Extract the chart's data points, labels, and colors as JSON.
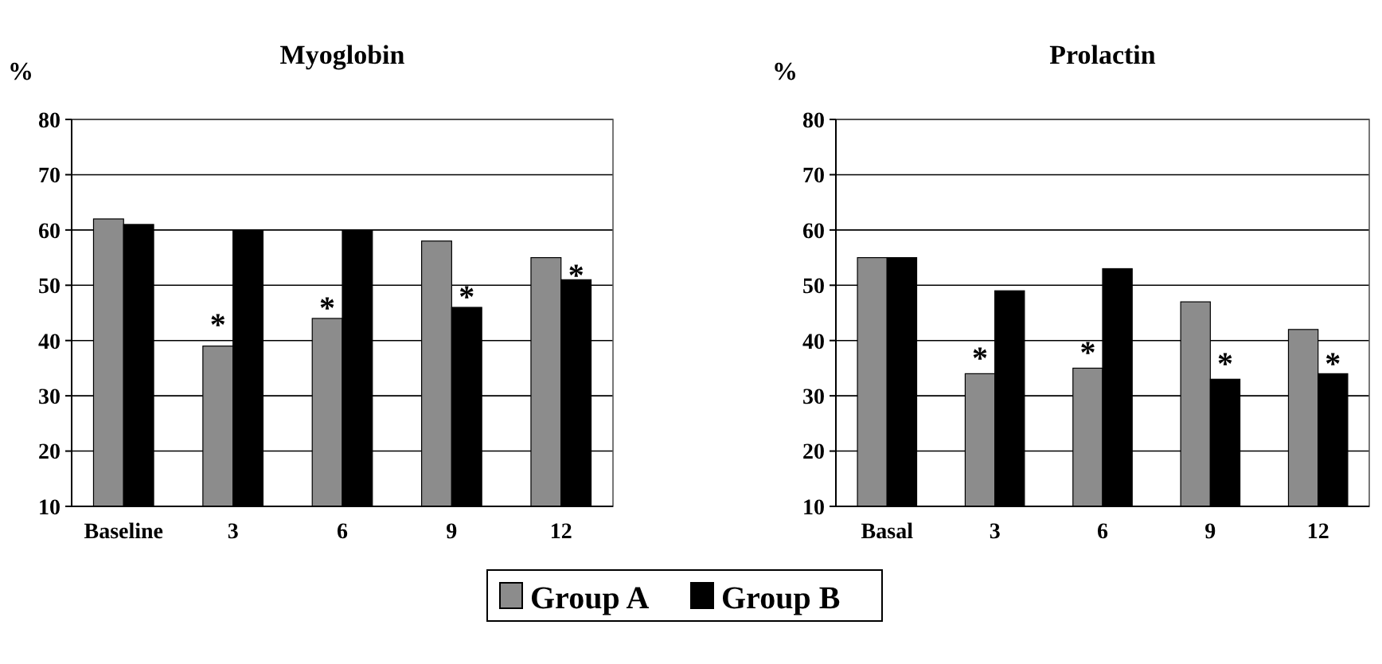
{
  "chart_data": [
    {
      "type": "bar",
      "title": "Myoglobin",
      "ylabel": "%",
      "categories": [
        "Baseline",
        "3",
        "6",
        "9",
        "12"
      ],
      "series": [
        {
          "name": "Group A",
          "color": "#8c8c8c",
          "values": [
            62,
            39,
            44,
            58,
            55
          ]
        },
        {
          "name": "Group B",
          "color": "#000000",
          "values": [
            61,
            60,
            60,
            46,
            51
          ]
        }
      ],
      "ylim": [
        10,
        80
      ],
      "yticks": [
        10,
        20,
        30,
        40,
        50,
        60,
        70,
        80
      ],
      "grid": "y",
      "legend": "bottom",
      "annotations": [
        {
          "text": "*",
          "x": "3",
          "y": 45
        },
        {
          "text": "*",
          "x": "6",
          "y": 48
        },
        {
          "text": "*",
          "x": "9",
          "y": 50
        },
        {
          "text": "*",
          "x": "12",
          "y": 54
        }
      ]
    },
    {
      "type": "bar",
      "title": "Prolactin",
      "ylabel": "%",
      "categories": [
        "Basal",
        "3",
        "6",
        "9",
        "12"
      ],
      "series": [
        {
          "color": "#8c8c8c",
          "values": [
            55,
            34,
            35,
            47,
            42
          ]
        },
        {
          "color": "#000000",
          "values": [
            55,
            49,
            53,
            33,
            34
          ]
        }
      ],
      "ylim": [
        10,
        80
      ],
      "yticks": [
        10,
        20,
        30,
        40,
        50,
        60,
        70,
        80
      ],
      "grid": "y",
      "annotations": [
        {
          "text": "*",
          "x": "3",
          "y": 39
        },
        {
          "text": "*",
          "x": "6",
          "y": 40
        },
        {
          "text": "*",
          "x": "9",
          "y": 38
        },
        {
          "text": "*",
          "x": "12",
          "y": 38
        }
      ]
    }
  ]
}
